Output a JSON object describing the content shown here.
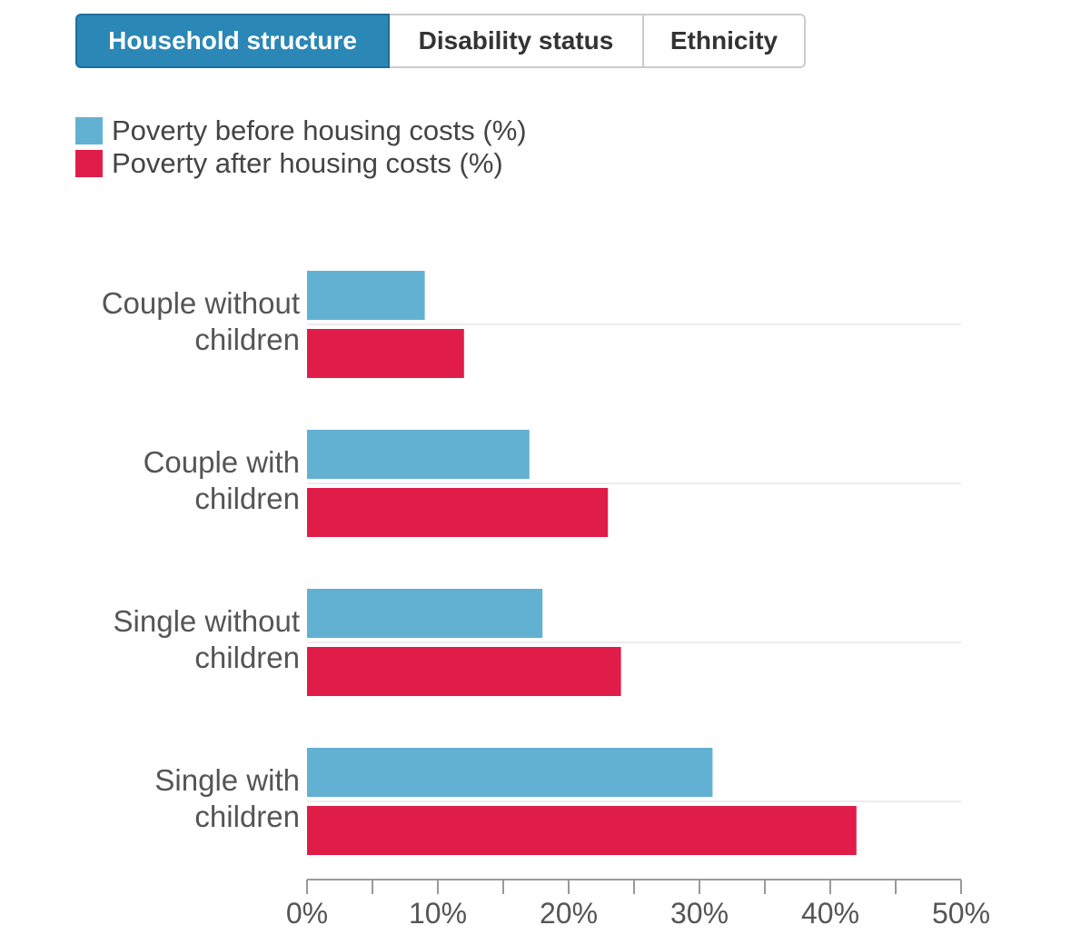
{
  "tabs": [
    {
      "label": "Household structure",
      "active": true
    },
    {
      "label": "Disability status",
      "active": false
    },
    {
      "label": "Ethnicity",
      "active": false
    }
  ],
  "colors": {
    "before": "#62b1d2",
    "after": "#e01c48",
    "active_tab": "#2a87b6"
  },
  "chart_data": {
    "type": "bar",
    "orientation": "horizontal",
    "categories": [
      [
        "Couple without",
        "children"
      ],
      [
        "Couple with",
        "children"
      ],
      [
        "Single without",
        "children"
      ],
      [
        "Single with",
        "children"
      ]
    ],
    "series": [
      {
        "name": "Poverty before housing costs (%)",
        "values": [
          9,
          17,
          18,
          31
        ]
      },
      {
        "name": "Poverty after housing costs (%)",
        "values": [
          12,
          23,
          24,
          42
        ]
      }
    ],
    "xlim": [
      0,
      50
    ],
    "xticks": [
      0,
      10,
      20,
      30,
      40,
      50
    ],
    "xtick_labels": [
      "0%",
      "10%",
      "20%",
      "30%",
      "40%",
      "50%"
    ],
    "legend_position": "top-left",
    "grid": true
  }
}
